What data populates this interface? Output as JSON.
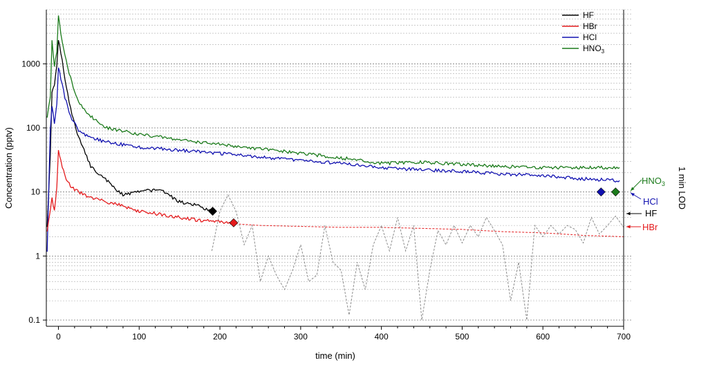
{
  "chart_data": {
    "type": "line",
    "xlabel": "time (min)",
    "ylabel": "Concentration (pptv)",
    "right_label": "1 min LOD",
    "xlim": [
      -15,
      700
    ],
    "ylim": [
      0.08,
      7000
    ],
    "y_scale": "log",
    "grid": "horizontal minor and major dashed gridlines",
    "legend_position": "top-right",
    "x_ticks": [
      0,
      100,
      200,
      300,
      400,
      500,
      600,
      700
    ],
    "x_tick_labels": [
      "0",
      "100",
      "200",
      "300",
      "400",
      "500",
      "600",
      "700"
    ],
    "y_ticks": [
      0.1,
      1,
      10,
      100,
      1000
    ],
    "y_tick_labels": [
      "0.1",
      "1",
      "10",
      "100",
      "1000"
    ],
    "legend": [
      {
        "label": "HF",
        "color": "#000000"
      },
      {
        "label": "HBr",
        "color": "#e41a1c"
      },
      {
        "label": "HCl",
        "color": "#1010b0"
      },
      {
        "label": "HNO",
        "sub": "3",
        "color": "#1a7a1a"
      }
    ],
    "series": [
      {
        "name": "HNO3",
        "color": "#1a7a1a",
        "x": [
          -14,
          -10,
          -8,
          -5,
          -2,
          0,
          3,
          8,
          15,
          25,
          40,
          60,
          100,
          150,
          200,
          250,
          300,
          350,
          400,
          450,
          500,
          550,
          600,
          650,
          695
        ],
        "y": [
          150,
          300,
          2300,
          900,
          1500,
          5800,
          2800,
          1300,
          600,
          250,
          150,
          100,
          80,
          65,
          55,
          47,
          40,
          34,
          28,
          29,
          27,
          25,
          24,
          24,
          24
        ]
      },
      {
        "name": "HF",
        "color": "#000000",
        "x": [
          -14,
          -10,
          -8,
          -5,
          -2,
          0,
          3,
          8,
          15,
          25,
          40,
          60,
          80,
          100,
          125,
          150,
          175,
          190
        ],
        "y": [
          3,
          40,
          350,
          450,
          900,
          2400,
          1500,
          600,
          200,
          70,
          25,
          15,
          9,
          10,
          11,
          7,
          6,
          5
        ]
      },
      {
        "name": "HCl",
        "color": "#1010b0",
        "x": [
          -14,
          -10,
          -8,
          -5,
          -2,
          0,
          3,
          8,
          15,
          25,
          40,
          60,
          100,
          150,
          200,
          250,
          300,
          350,
          400,
          450,
          500,
          550,
          600,
          650,
          695
        ],
        "y": [
          1.2,
          100,
          230,
          120,
          250,
          900,
          600,
          300,
          150,
          90,
          70,
          60,
          50,
          45,
          40,
          35,
          31,
          28,
          24,
          22,
          21,
          19,
          18,
          16,
          15
        ]
      },
      {
        "name": "HBr",
        "color": "#e41a1c",
        "x": [
          -14,
          -10,
          -8,
          -5,
          -2,
          0,
          3,
          8,
          15,
          25,
          40,
          60,
          80,
          100,
          125,
          150,
          175,
          200,
          215
        ],
        "y": [
          2.5,
          5,
          8,
          5,
          12,
          45,
          30,
          18,
          12,
          10,
          8,
          7,
          6,
          5,
          4.5,
          4,
          3.6,
          3.4,
          3.3
        ]
      },
      {
        "name": "HBr",
        "color": "#e41a1c",
        "style": "dashed",
        "x": [
          215,
          250,
          300,
          350,
          400,
          450,
          500,
          550,
          600,
          650,
          700
        ],
        "y": [
          3.2,
          3,
          2.9,
          2.8,
          2.8,
          2.7,
          2.6,
          2.4,
          2.3,
          2.1,
          2
        ]
      },
      {
        "name": "LOD",
        "color": "#8c8c8c",
        "style": "dashed",
        "x": [
          190,
          200,
          210,
          220,
          230,
          240,
          250,
          260,
          270,
          280,
          290,
          300,
          310,
          320,
          330,
          340,
          350,
          360,
          370,
          380,
          390,
          400,
          410,
          420,
          430,
          440,
          450,
          460,
          470,
          480,
          490,
          500,
          510,
          520,
          530,
          540,
          550,
          560,
          570,
          580,
          590,
          600,
          610,
          620,
          630,
          640,
          650,
          660,
          670,
          680,
          690,
          700
        ],
        "y": [
          1.2,
          5,
          9,
          5,
          1.5,
          3,
          0.4,
          1,
          0.5,
          0.3,
          0.6,
          1.5,
          0.4,
          0.5,
          3,
          0.8,
          0.6,
          0.12,
          0.8,
          0.3,
          1.5,
          3,
          1.2,
          4,
          1.2,
          3,
          0.1,
          0.6,
          2.5,
          1.5,
          3,
          1.6,
          3,
          2,
          4,
          2.5,
          1.5,
          0.2,
          0.8,
          0.1,
          3,
          2,
          3,
          2.2,
          3,
          2.6,
          1.6,
          4,
          2.2,
          3,
          4.2,
          2.8
        ]
      }
    ],
    "markers": [
      {
        "species": "HF",
        "x": 191,
        "y": 5,
        "color": "#000000"
      },
      {
        "species": "HBr",
        "x": 217,
        "y": 3.3,
        "color": "#e41a1c"
      },
      {
        "species": "HCl",
        "x": 672,
        "y": 10,
        "color": "#1010b0"
      },
      {
        "species": "HNO3",
        "x": 690,
        "y": 10,
        "color": "#1a7a1a"
      }
    ],
    "annotations": [
      {
        "label": "HNO",
        "sub": "3",
        "color": "#1a7a1a",
        "y": 12.5
      },
      {
        "label": "HCl",
        "color": "#1010b0",
        "y": 6.7
      },
      {
        "label": "HF",
        "color": "#000000",
        "y": 4.9
      },
      {
        "label": "HBr",
        "color": "#e41a1c",
        "y": 3.0
      }
    ]
  }
}
